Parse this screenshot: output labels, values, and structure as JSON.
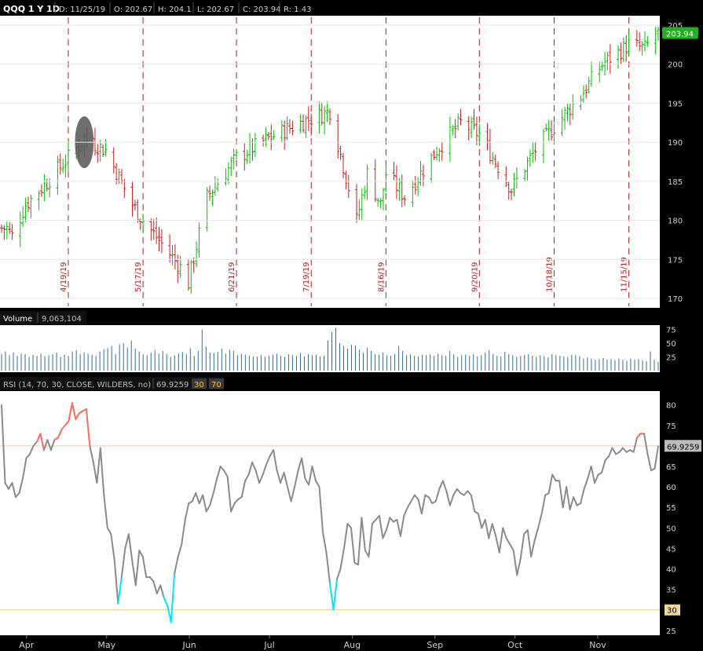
{
  "header": {
    "symbol_label": "QQQ 1 Y 1D",
    "date": "D: 11/25/19",
    "open": "O: 202.67",
    "high": "H: 204.1",
    "low": "L: 202.67",
    "close": "C: 203.94",
    "range": "R: 1.43"
  },
  "volume_panel": {
    "label": "Volume",
    "value": "9,063,104",
    "yticks": [
      25,
      50,
      75
    ]
  },
  "rsi_panel": {
    "label": "RSI (14, 70, 30, CLOSE, WILDERS, no)",
    "value": "69.9259",
    "lower_level": "30",
    "upper_level": "70",
    "yticks": [
      25,
      30,
      35,
      40,
      45,
      50,
      55,
      60,
      65,
      70,
      75,
      80
    ]
  },
  "months": [
    "Apr",
    "May",
    "Jun",
    "Jul",
    "Aug",
    "Sep",
    "Oct",
    "Nov"
  ],
  "event_dates": [
    "4/19/19",
    "5/17/19",
    "6/21/19",
    "7/19/19",
    "8/16/19",
    "9/20/19",
    "10/18/19",
    "11/15/19"
  ],
  "colors": {
    "up_bar": "#00c000",
    "down_bar": "#c81e1e",
    "event_line": "#b01e1e",
    "volume": "#2e6f9e",
    "rsi_line": "#8a8a8a",
    "rsi_overbought": "#ff6a5a",
    "rsi_oversold": "#00e5ff",
    "level_line": "#e8a84a",
    "last_price_tag": "#20b020"
  },
  "chart_data": [
    {
      "type": "ohlc",
      "title": "QQQ 1 Y 1D",
      "last_price": 203.94,
      "ylim": [
        169,
        206
      ],
      "yticks": [
        170,
        175,
        180,
        185,
        190,
        195,
        200,
        205
      ],
      "x_month_labels": [
        "Apr",
        "May",
        "Jun",
        "Jul",
        "Aug",
        "Sep",
        "Oct",
        "Nov"
      ],
      "event_markers": [
        "4/19/19",
        "5/17/19",
        "6/21/19",
        "7/19/19",
        "8/16/19",
        "9/20/19",
        "10/18/19",
        "11/15/19"
      ],
      "anchor_closes": [
        {
          "date": "3/27/19",
          "close": 179
        },
        {
          "date": "3/29/19",
          "close": 178
        },
        {
          "date": "4/3/19",
          "close": 182
        },
        {
          "date": "4/10/19",
          "close": 184.5
        },
        {
          "date": "4/19/19",
          "close": 188
        },
        {
          "date": "4/25/19",
          "close": 190.5
        },
        {
          "date": "5/3/19",
          "close": 189
        },
        {
          "date": "5/13/19",
          "close": 182
        },
        {
          "date": "5/17/19",
          "close": 180
        },
        {
          "date": "5/31/19",
          "close": 174
        },
        {
          "date": "6/3/19",
          "close": 172
        },
        {
          "date": "6/10/19",
          "close": 183
        },
        {
          "date": "6/21/19",
          "close": 188
        },
        {
          "date": "7/3/19",
          "close": 190.5
        },
        {
          "date": "7/15/19",
          "close": 192.5
        },
        {
          "date": "7/26/19",
          "close": 194
        },
        {
          "date": "8/5/19",
          "close": 180
        },
        {
          "date": "8/9/19",
          "close": 186
        },
        {
          "date": "8/14/19",
          "close": 182
        },
        {
          "date": "8/16/19",
          "close": 186
        },
        {
          "date": "8/23/19",
          "close": 183
        },
        {
          "date": "9/4/19",
          "close": 189
        },
        {
          "date": "9/13/19",
          "close": 192.5
        },
        {
          "date": "9/20/19",
          "close": 191
        },
        {
          "date": "10/2/19",
          "close": 184
        },
        {
          "date": "10/11/19",
          "close": 189
        },
        {
          "date": "10/18/19",
          "close": 192
        },
        {
          "date": "10/28/19",
          "close": 196
        },
        {
          "date": "11/5/19",
          "close": 200
        },
        {
          "date": "11/15/19",
          "close": 202.5
        },
        {
          "date": "11/21/19",
          "close": 202
        },
        {
          "date": "11/25/19",
          "close": 203.94
        }
      ]
    },
    {
      "type": "bar",
      "title": "Volume",
      "last_value": "9,063,104",
      "ylim": [
        0,
        80
      ],
      "yticks": [
        25,
        50,
        75
      ],
      "note_values": "relative daily bar heights in millions (approximate)",
      "values": [
        30,
        35,
        28,
        33,
        27,
        31,
        30,
        25,
        29,
        27,
        31,
        26,
        28,
        30,
        33,
        25,
        29,
        27,
        35,
        37,
        30,
        33,
        31,
        29,
        27,
        35,
        39,
        41,
        45,
        30,
        48,
        50,
        42,
        55,
        40,
        35,
        30,
        28,
        33,
        38,
        31,
        36,
        30,
        25,
        28,
        31,
        34,
        30,
        41,
        27,
        36,
        75,
        44,
        33,
        32,
        34,
        40,
        31,
        38,
        36,
        28,
        30,
        29,
        27,
        26,
        26,
        28,
        25,
        27,
        29,
        31,
        27,
        25,
        30,
        28,
        27,
        32,
        26,
        30,
        28,
        29,
        26,
        27,
        55,
        70,
        78,
        50,
        45,
        40,
        47,
        46,
        38,
        33,
        42,
        36,
        30,
        29,
        33,
        28,
        27,
        30,
        45,
        36,
        28,
        30,
        27,
        26,
        29,
        28,
        30,
        27,
        31,
        28,
        27,
        36,
        30,
        25,
        28,
        29,
        27,
        30,
        26,
        28,
        33,
        37,
        30,
        27,
        26,
        34,
        30,
        28,
        25,
        27,
        29,
        30,
        27,
        25,
        28,
        26,
        24,
        30,
        28,
        27,
        26,
        25,
        29,
        28,
        26,
        22,
        24,
        22,
        20,
        21,
        23,
        20,
        21,
        19,
        22,
        20,
        18,
        22,
        20,
        21,
        19,
        17,
        35,
        20,
        16
      ]
    },
    {
      "type": "line",
      "title": "RSI (14, 70, 30, CLOSE, WILDERS, no)",
      "last_value": 69.9259,
      "ylim": [
        24,
        83
      ],
      "yticks": [
        25,
        30,
        35,
        40,
        45,
        50,
        55,
        60,
        65,
        70,
        75,
        80
      ],
      "levels": {
        "upper": 70,
        "lower": 30
      },
      "values": [
        80,
        61,
        59.5,
        61,
        57.5,
        58.5,
        62,
        67,
        68,
        70,
        71,
        73,
        69,
        71.5,
        69,
        71.5,
        72,
        74,
        75,
        76,
        80.5,
        76.5,
        78,
        78.5,
        79,
        70,
        66,
        61,
        69.5,
        58,
        50,
        48.5,
        42,
        31.5,
        38,
        45,
        48.5,
        42,
        36,
        44.5,
        43,
        38,
        38,
        37,
        34,
        36,
        33,
        31,
        27,
        39,
        43,
        46,
        52,
        56,
        56.5,
        58.5,
        56,
        58,
        54,
        55.5,
        58.5,
        62,
        65,
        64,
        62.5,
        54,
        56,
        57,
        57.5,
        61.5,
        63,
        66,
        64,
        61,
        63,
        65.5,
        67.5,
        69,
        64,
        61,
        63.5,
        60,
        56.5,
        60,
        64,
        67,
        62,
        60.5,
        65,
        61.5,
        60,
        49,
        44,
        36.5,
        30,
        37.5,
        40,
        45,
        51,
        50,
        41.5,
        41,
        52.5,
        44.5,
        43,
        51,
        52,
        53,
        47.5,
        49.5,
        52.5,
        51.5,
        52,
        48,
        53,
        55,
        56.5,
        58,
        57,
        53.5,
        58,
        57.5,
        56,
        56.5,
        59.5,
        61.5,
        59,
        55.5,
        58,
        59.5,
        58.5,
        58,
        59,
        58,
        54,
        53.5,
        50,
        52,
        47.5,
        51,
        48,
        44,
        50,
        47.5,
        46,
        44.5,
        38.5,
        42.5,
        48.5,
        49.5,
        43,
        47,
        50,
        53.5,
        58,
        58.5,
        63,
        61.5,
        61.5,
        55,
        60,
        54.5,
        57.5,
        55.5,
        56,
        59.5,
        62,
        65,
        61,
        63,
        63.5,
        66.5,
        67.5,
        69.5,
        68,
        68.5,
        69.5,
        68.5,
        69,
        68.5,
        72,
        73,
        73,
        68,
        64,
        64.5,
        69.9259
      ]
    }
  ]
}
